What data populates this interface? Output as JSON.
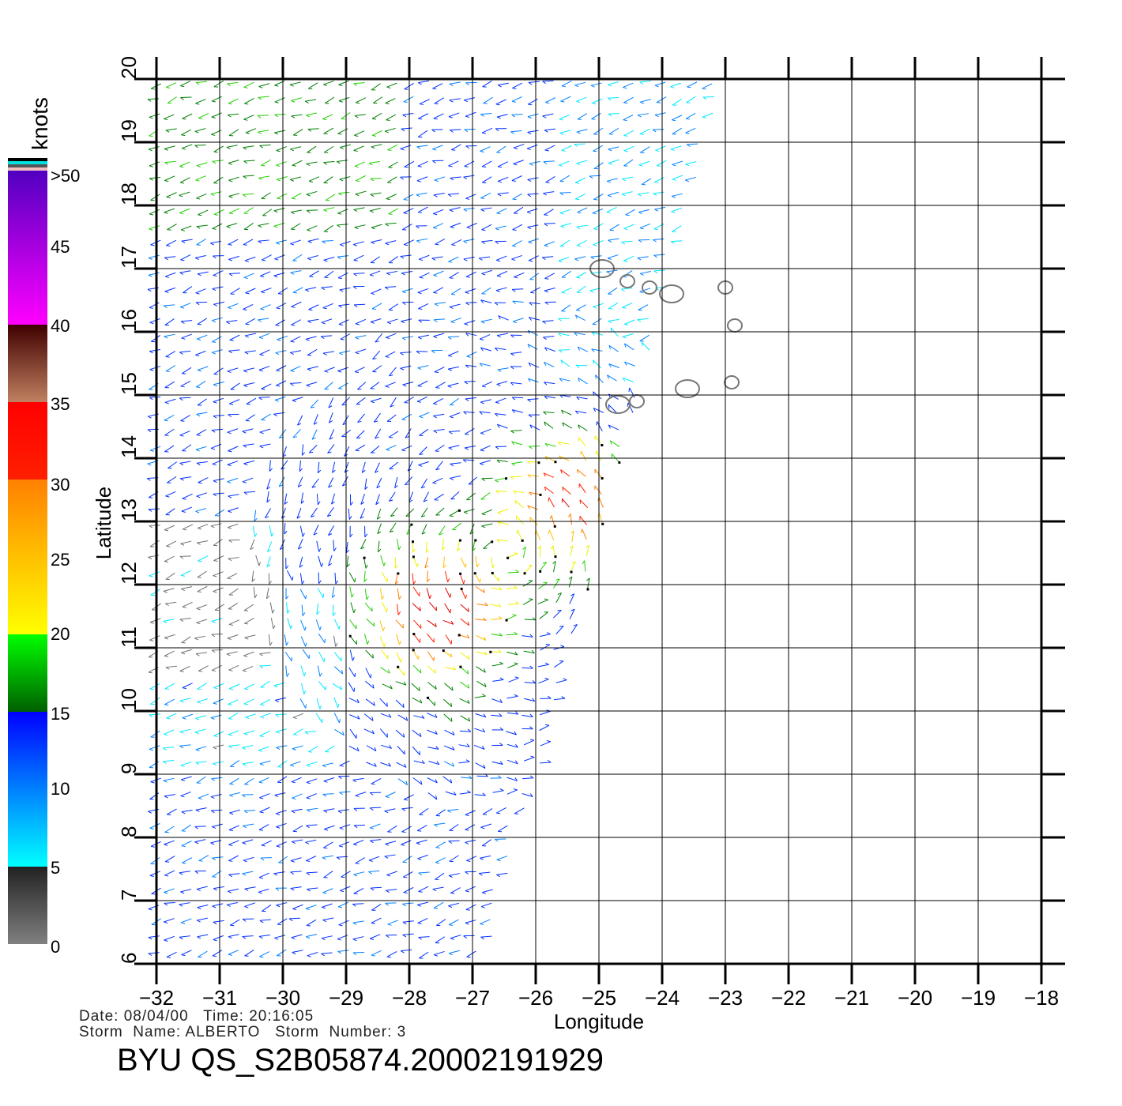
{
  "chart_data": {
    "type": "scatter",
    "subtype": "wind-vector-map",
    "title": "BYU QS_S2B05874.20002191929",
    "xlabel": "Longitude",
    "ylabel": "Latitude",
    "xlim": [
      -32,
      -18
    ],
    "ylim": [
      6,
      20
    ],
    "xticks": [
      "−32",
      "−31",
      "−30",
      "−29",
      "−28",
      "−27",
      "−26",
      "−25",
      "−24",
      "−23",
      "−22",
      "−21",
      "−20",
      "−19",
      "−18"
    ],
    "yticks": [
      "6",
      "7",
      "8",
      "9",
      "10",
      "11",
      "12",
      "13",
      "14",
      "15",
      "16",
      "17",
      "18",
      "19",
      "20"
    ],
    "grid": true,
    "colorbar": {
      "label": "knots",
      "ticks": [
        "0",
        "5",
        "10",
        "15",
        "20",
        "25",
        "30",
        "35",
        "40",
        "45",
        ">50"
      ],
      "colors": [
        "#808080",
        "#333333",
        "#00ffff",
        "#0060ff",
        "#0000ff",
        "#006000",
        "#00ff00",
        "#ffff00",
        "#ffc000",
        "#ff8000",
        "#ff0000",
        "#d02010",
        "#c08060",
        "#400000",
        "#ff00ff",
        "#a000c0",
        "#5000c0"
      ]
    },
    "swath": {
      "top_right_lon": -23.0,
      "bottom_right_lon": -26.8,
      "left_lon": -32
    },
    "storm_center_approx": {
      "lon": -26.5,
      "lat": 12.5
    },
    "islands": [
      {
        "lon": -24.95,
        "lat": 17.0
      },
      {
        "lon": -24.55,
        "lat": 16.8
      },
      {
        "lon": -24.2,
        "lat": 16.7
      },
      {
        "lon": -23.85,
        "lat": 16.6
      },
      {
        "lon": -23.0,
        "lat": 16.7
      },
      {
        "lon": -22.85,
        "lat": 16.1
      },
      {
        "lon": -23.6,
        "lat": 15.1
      },
      {
        "lon": -22.9,
        "lat": 15.2
      },
      {
        "lon": -24.4,
        "lat": 14.9
      },
      {
        "lon": -24.7,
        "lat": 14.85
      }
    ]
  },
  "info": {
    "date_line": "Date: 08/04/00   Time: 20:16:05",
    "storm_line": "Storm  Name: ALBERTO   Storm  Number: 3"
  }
}
